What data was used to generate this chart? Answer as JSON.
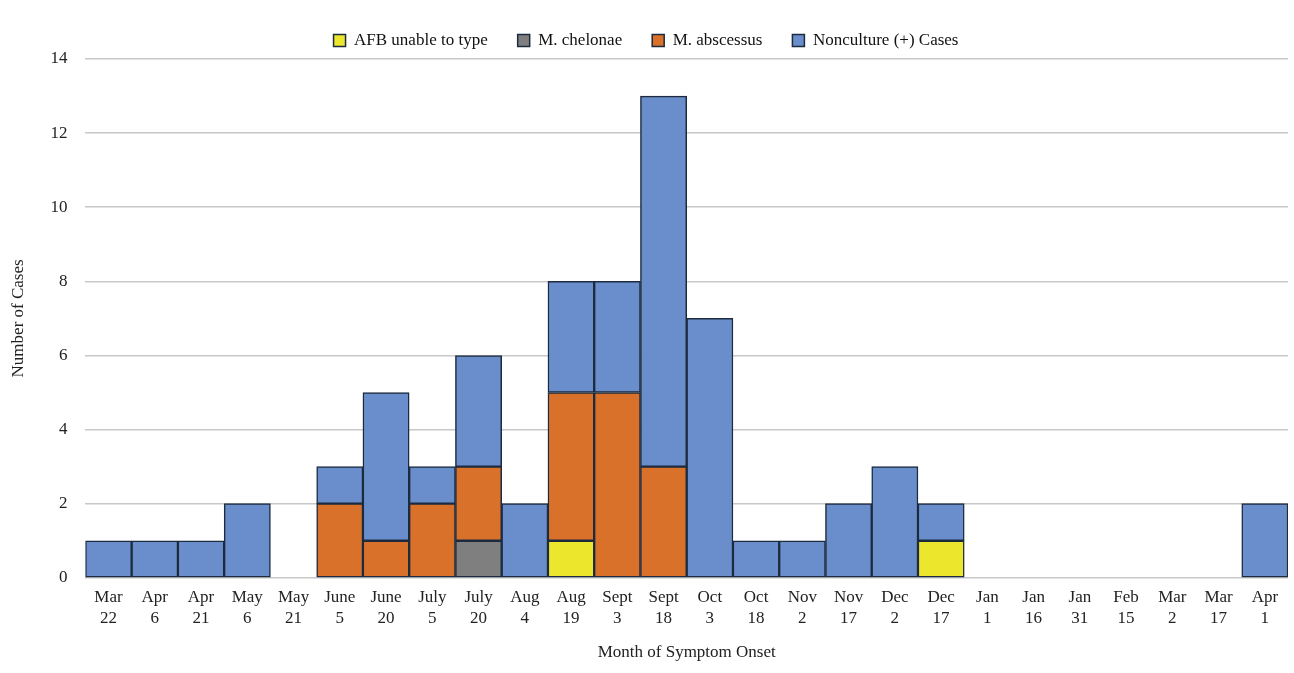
{
  "chart_data": {
    "type": "bar",
    "stacked": true,
    "xlabel": "Month of Symptom Onset",
    "ylabel": "Number of Cases",
    "categories": [
      "Mar 22",
      "Apr 6",
      "Apr 21",
      "May 6",
      "May 21",
      "June 5",
      "June 20",
      "July 5",
      "July 20",
      "Aug 4",
      "Aug 19",
      "Sept 3",
      "Sept 18",
      "Oct 3",
      "Oct 18",
      "Nov 2",
      "Nov 17",
      "Dec 2",
      "Dec 17",
      "Jan 1",
      "Jan 16",
      "Jan 31",
      "Feb 15",
      "Mar 2",
      "Mar 17",
      "Apr 1"
    ],
    "series": [
      {
        "name": "AFB unable to type",
        "color": "#ece62c",
        "values": [
          null,
          null,
          null,
          null,
          null,
          null,
          null,
          null,
          null,
          null,
          1,
          null,
          null,
          null,
          null,
          null,
          null,
          null,
          1,
          null,
          null,
          null,
          null,
          null,
          null,
          null
        ]
      },
      {
        "name": "M. chelonae",
        "color": "#7f7f7f",
        "values": [
          null,
          null,
          null,
          null,
          null,
          null,
          null,
          null,
          1,
          null,
          null,
          null,
          null,
          null,
          null,
          null,
          null,
          null,
          null,
          null,
          null,
          null,
          null,
          null,
          null,
          null
        ]
      },
      {
        "name": "M. abscessus",
        "color": "#d9712b",
        "values": [
          null,
          null,
          null,
          null,
          null,
          2,
          1,
          2,
          2,
          null,
          4,
          5,
          3,
          null,
          null,
          null,
          null,
          null,
          null,
          null,
          null,
          null,
          null,
          null,
          null,
          null
        ]
      },
      {
        "name": "Nonculture (+) Cases",
        "color": "#6a8dcb",
        "values": [
          1,
          1,
          1,
          2,
          null,
          1,
          4,
          1,
          3,
          2,
          3,
          3,
          10,
          7,
          1,
          1,
          2,
          3,
          1,
          null,
          null,
          null,
          null,
          null,
          null,
          2
        ]
      }
    ],
    "ylim": [
      0,
      14
    ],
    "yticks": [
      0,
      2,
      4,
      6,
      8,
      10,
      12,
      14
    ],
    "grid": "y",
    "legend": "top"
  }
}
